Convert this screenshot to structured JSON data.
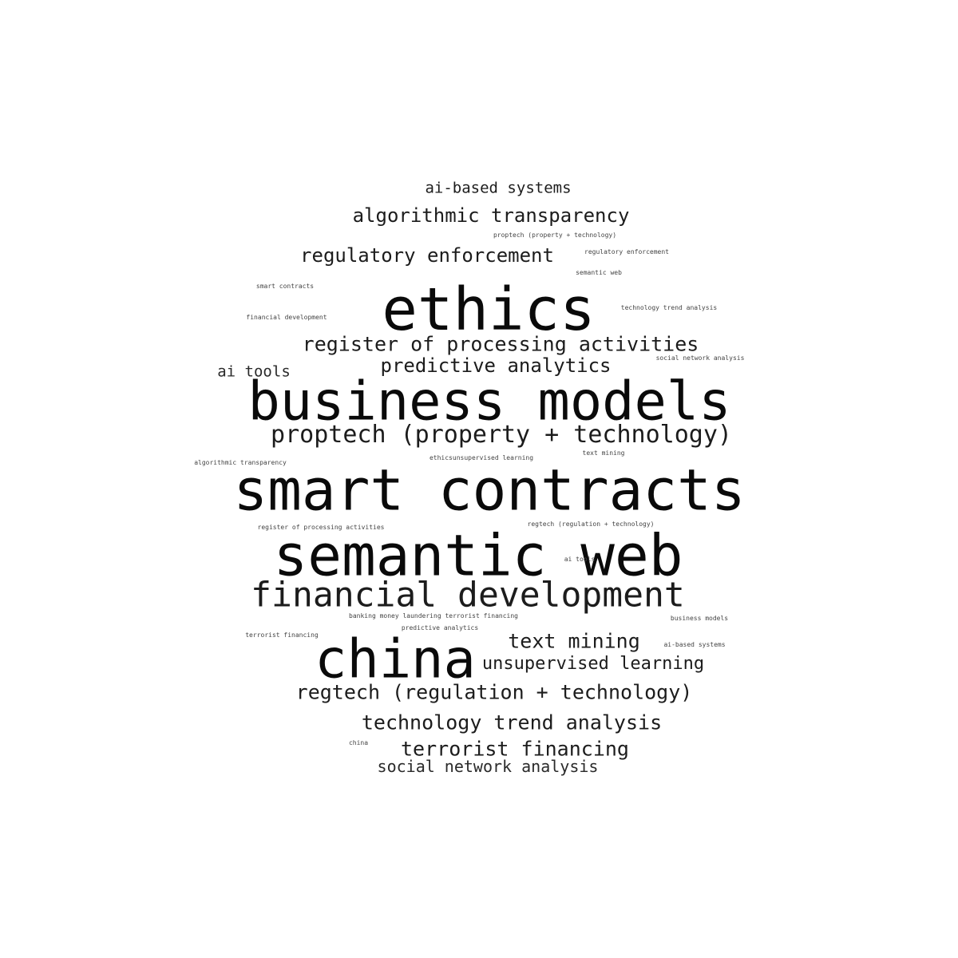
{
  "words": [
    {
      "text": "ai-based systems"
    },
    {
      "text": "algorithmic transparency"
    },
    {
      "text": "proptech (property + technology)"
    },
    {
      "text": "regulatory enforcement"
    },
    {
      "text": "regulatory enforcement"
    },
    {
      "text": "semantic web"
    },
    {
      "text": "smart contracts"
    },
    {
      "text": "ethics"
    },
    {
      "text": "technology trend analysis"
    },
    {
      "text": "financial development"
    },
    {
      "text": "register of processing activities"
    },
    {
      "text": "social network analysis"
    },
    {
      "text": "ai tools"
    },
    {
      "text": "predictive analytics"
    },
    {
      "text": "business models"
    },
    {
      "text": "proptech (property + technology)"
    },
    {
      "text": "algorithmic transparency"
    },
    {
      "text": "ethicsunsupervised learning"
    },
    {
      "text": "text mining"
    },
    {
      "text": "smart contracts"
    },
    {
      "text": "register of processing activities"
    },
    {
      "text": "regtech (regulation + technology)"
    },
    {
      "text": "semantic web"
    },
    {
      "text": "ai tools"
    },
    {
      "text": "financial development"
    },
    {
      "text": "banking money laundering terrorist financing"
    },
    {
      "text": "business models"
    },
    {
      "text": "predictive analytics"
    },
    {
      "text": "terrorist financing"
    },
    {
      "text": "text mining"
    },
    {
      "text": "ai-based systems"
    },
    {
      "text": "china"
    },
    {
      "text": "unsupervised learning"
    },
    {
      "text": "regtech (regulation + technology)"
    },
    {
      "text": "technology trend analysis"
    },
    {
      "text": "china"
    },
    {
      "text": "terrorist financing"
    },
    {
      "text": "social network analysis"
    }
  ]
}
